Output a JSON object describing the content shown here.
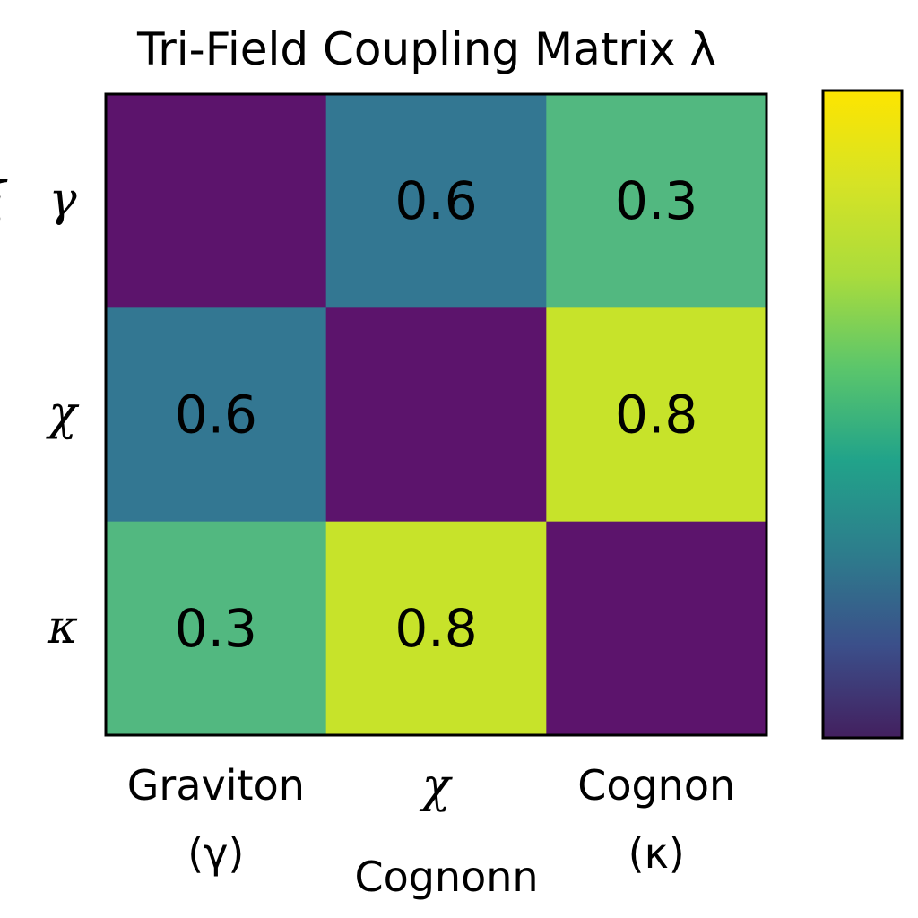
{
  "chart_data": {
    "type": "heatmap",
    "title": "Tri-Field Coupling Matrix λ",
    "xlabel": "Cognonn",
    "ylabel": "",
    "rows": [
      "γ",
      "χ",
      "κ"
    ],
    "columns": [
      {
        "name": "Graviton",
        "symbol": "(γ)"
      },
      {
        "name": "",
        "symbol": "χ"
      },
      {
        "name": "Cognon",
        "symbol": "(κ)"
      }
    ],
    "values": [
      [
        0.0,
        0.6,
        0.3
      ],
      [
        0.6,
        0.0,
        0.8
      ],
      [
        0.3,
        0.8,
        0.0
      ]
    ],
    "cell_labels": [
      [
        "",
        "0.6",
        "0.3"
      ],
      [
        "0.6",
        "",
        "0.8"
      ],
      [
        "0.3",
        "0.8",
        ""
      ]
    ],
    "colormap": "viridis",
    "colors": {
      "cell_zero": "#5c146c",
      "cell_low": "#337792",
      "cell_mid": "#52b880",
      "cell_high": "#c7e32a",
      "frame": "#000000"
    },
    "colorbar": {
      "stops": [
        "#43205f",
        "#3b4f8a",
        "#2d7d8c",
        "#21a38a",
        "#5bc66b",
        "#aadc3c",
        "#d6e325",
        "#fde500"
      ],
      "ticks": []
    },
    "y_axis_fragment": "ξ"
  }
}
